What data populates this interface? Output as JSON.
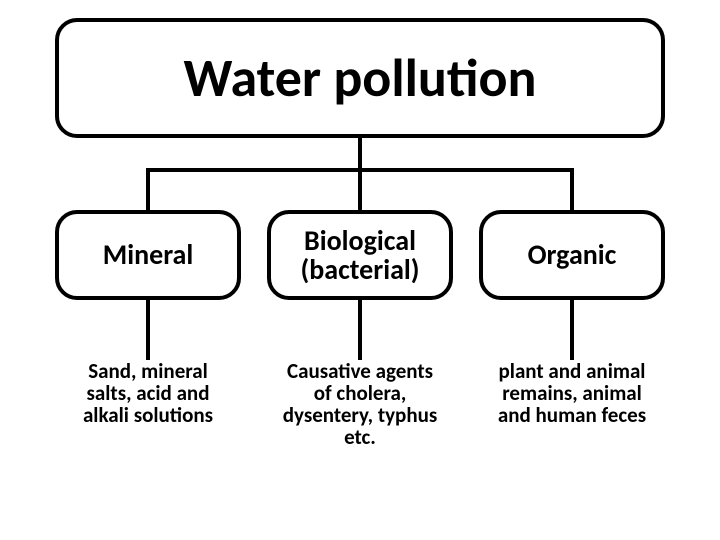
{
  "diagram": {
    "type": "tree",
    "background_color": "#ffffff",
    "border_color": "#000000",
    "text_color": "#000000",
    "root": {
      "label": "Water pollution",
      "fontsize": 54,
      "font_weight": 700,
      "border_radius": 22,
      "border_width": 4
    },
    "categories": [
      {
        "label": "Mineral",
        "fontsize": 28
      },
      {
        "label": "Biological (bacterial)",
        "fontsize": 28
      },
      {
        "label": "Organic",
        "fontsize": 28
      }
    ],
    "details": [
      {
        "label": "Sand, mineral salts, acid and alkali solutions",
        "fontsize": 21
      },
      {
        "label": "Causative agents of cholera, dysentery, typhus etc.",
        "fontsize": 21
      },
      {
        "label": "plant and animal remains, animal and human feces",
        "fontsize": 21
      }
    ],
    "connector_color": "#000000",
    "connector_width": 4
  }
}
